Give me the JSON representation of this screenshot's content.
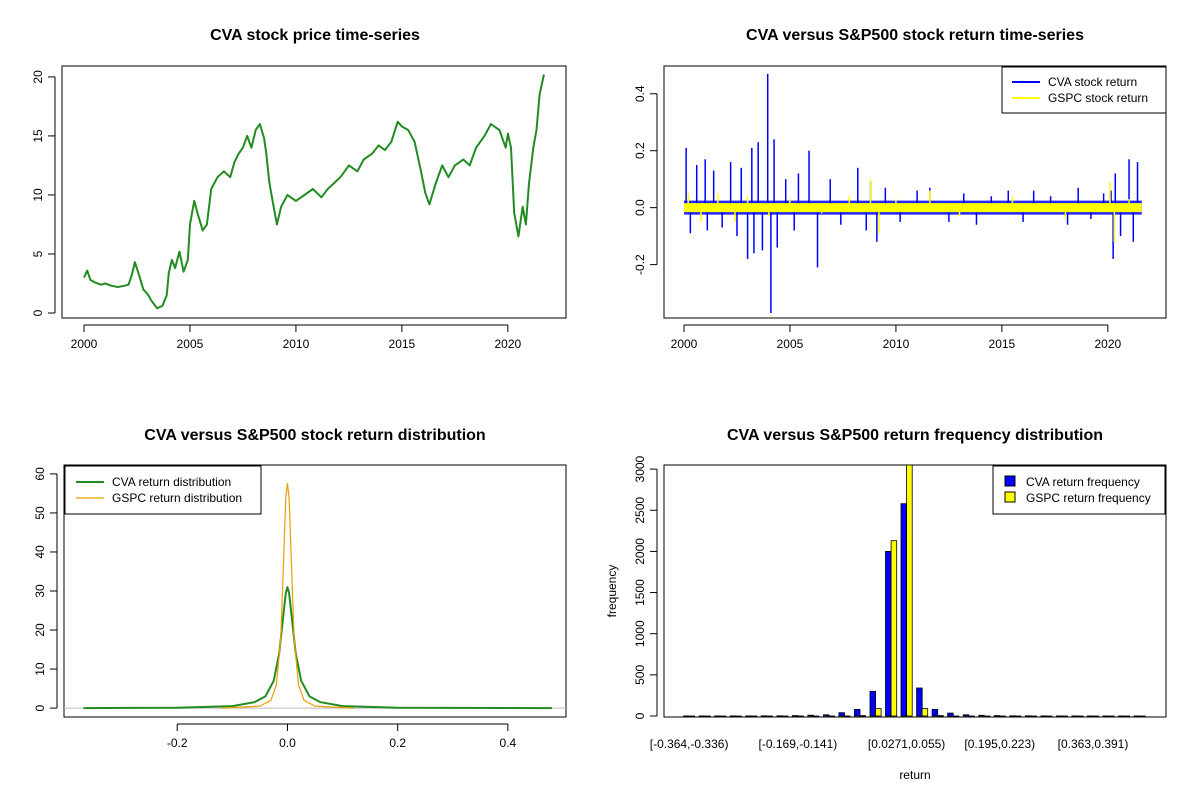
{
  "chart_data": [
    {
      "type": "line",
      "title": "CVA stock price time-series",
      "xlabel": "",
      "ylabel": "",
      "xlim": [
        2000,
        2021.8
      ],
      "ylim": [
        0,
        20.5
      ],
      "x_ticks": [
        "2000",
        "2005",
        "2010",
        "2015",
        "2020"
      ],
      "y_ticks": [
        "0",
        "5",
        "10",
        "15",
        "20"
      ],
      "colors": {
        "line": "#228B22"
      },
      "series": [
        {
          "x": [
            2000.0,
            2000.15,
            2000.3,
            2000.5,
            2000.8,
            2001.0,
            2001.3,
            2001.6,
            2001.9,
            2002.1,
            2002.25,
            2002.4,
            2002.6,
            2002.8,
            2003.0,
            2003.2,
            2003.45,
            2003.7,
            2003.9,
            2004.0,
            2004.15,
            2004.3,
            2004.5,
            2004.7,
            2004.9,
            2005.0,
            2005.2,
            2005.4,
            2005.6,
            2005.8,
            2006.0,
            2006.3,
            2006.6,
            2006.9,
            2007.1,
            2007.3,
            2007.5,
            2007.7,
            2007.9,
            2008.1,
            2008.3,
            2008.5,
            2008.6,
            2008.75,
            2008.9,
            2009.1,
            2009.3,
            2009.6,
            2010.0,
            2010.4,
            2010.8,
            2011.2,
            2011.5,
            2011.8,
            2012.1,
            2012.5,
            2012.9,
            2013.2,
            2013.6,
            2013.9,
            2014.2,
            2014.5,
            2014.8,
            2015.0,
            2015.3,
            2015.6,
            2015.9,
            2016.1,
            2016.3,
            2016.6,
            2016.9,
            2017.2,
            2017.5,
            2017.9,
            2018.2,
            2018.5,
            2018.9,
            2019.2,
            2019.6,
            2019.9,
            2020.0,
            2020.15,
            2020.3,
            2020.5,
            2020.7,
            2020.85,
            2021.0,
            2021.1,
            2021.2,
            2021.35,
            2021.5,
            2021.7
          ],
          "values": [
            3.0,
            3.6,
            2.8,
            2.6,
            2.4,
            2.5,
            2.3,
            2.2,
            2.3,
            2.4,
            3.2,
            4.3,
            3.2,
            2.0,
            1.6,
            1.0,
            0.4,
            0.6,
            1.5,
            3.4,
            4.5,
            3.8,
            5.2,
            3.5,
            4.5,
            7.5,
            9.5,
            8.2,
            7.0,
            7.5,
            10.5,
            11.5,
            12.0,
            11.5,
            12.8,
            13.5,
            14.0,
            15.0,
            14.0,
            15.5,
            16.0,
            14.8,
            13.5,
            11.0,
            9.5,
            7.5,
            9.0,
            10.0,
            9.5,
            10.0,
            10.5,
            9.8,
            10.5,
            11.0,
            11.5,
            12.5,
            12.0,
            13.0,
            13.5,
            14.2,
            13.8,
            14.5,
            16.2,
            15.8,
            15.5,
            14.5,
            12.0,
            10.2,
            9.2,
            11.0,
            12.5,
            11.5,
            12.5,
            13.0,
            12.5,
            14.0,
            15.0,
            16.0,
            15.5,
            14.0,
            15.2,
            14.0,
            8.5,
            6.5,
            9.0,
            7.5,
            11.0,
            12.5,
            14.0,
            15.5,
            18.5,
            20.2
          ]
        }
      ]
    },
    {
      "type": "line",
      "title": "CVA versus S&P500 stock return time-series",
      "xlabel": "",
      "ylabel": "",
      "xlim": [
        2000,
        2021.8
      ],
      "ylim": [
        -0.37,
        0.48
      ],
      "x_ticks": [
        "2000",
        "2005",
        "2010",
        "2015",
        "2020"
      ],
      "y_ticks": [
        "-0.2",
        "0.0",
        "0.2",
        "0.4"
      ],
      "legend_position": "top-right",
      "series": [
        {
          "name": "CVA stock return",
          "color": "#0000FF",
          "x": [
            2000.1,
            2000.3,
            2000.6,
            2001.0,
            2001.1,
            2001.4,
            2001.8,
            2002.2,
            2002.5,
            2002.7,
            2003.0,
            2003.2,
            2003.3,
            2003.5,
            2003.7,
            2003.95,
            2004.1,
            2004.25,
            2004.4,
            2004.8,
            2005.2,
            2005.4,
            2005.9,
            2006.3,
            2006.9,
            2007.4,
            2008.2,
            2008.6,
            2008.8,
            2009.1,
            2009.5,
            2010.2,
            2011.0,
            2011.6,
            2012.5,
            2013.2,
            2013.8,
            2014.5,
            2015.3,
            2016.0,
            2016.5,
            2017.3,
            2018.1,
            2018.6,
            2019.2,
            2019.8,
            2020.15,
            2020.25,
            2020.35,
            2020.6,
            2021.0,
            2021.2,
            2021.4
          ],
          "values": [
            0.21,
            -0.09,
            0.15,
            0.17,
            -0.08,
            0.13,
            -0.07,
            0.16,
            -0.1,
            0.14,
            -0.18,
            0.21,
            -0.16,
            0.23,
            -0.15,
            0.47,
            -0.37,
            0.24,
            -0.14,
            0.1,
            -0.08,
            0.12,
            0.2,
            -0.21,
            0.1,
            -0.06,
            0.14,
            -0.08,
            0.09,
            -0.12,
            0.07,
            -0.05,
            0.06,
            0.07,
            -0.05,
            0.05,
            -0.06,
            0.04,
            0.06,
            -0.05,
            0.06,
            0.04,
            -0.06,
            0.07,
            -0.04,
            0.05,
            0.06,
            -0.18,
            0.12,
            -0.1,
            0.17,
            -0.12,
            0.16
          ]
        },
        {
          "name": "GSPC stock return",
          "color": "#FFFF00",
          "x": [
            2000.2,
            2000.8,
            2001.6,
            2002.4,
            2003.0,
            2004.0,
            2005.0,
            2006.5,
            2007.8,
            2008.8,
            2009.2,
            2010.0,
            2011.6,
            2013.0,
            2015.5,
            2018.0,
            2020.1,
            2020.3,
            2021.0
          ],
          "values": [
            0.05,
            -0.05,
            0.05,
            -0.05,
            0.04,
            -0.03,
            0.03,
            -0.02,
            0.04,
            0.1,
            -0.09,
            0.03,
            0.06,
            -0.03,
            0.04,
            -0.04,
            0.09,
            -0.12,
            0.03
          ]
        }
      ]
    },
    {
      "type": "line",
      "title": "CVA versus S&P500 stock return distribution",
      "xlabel": "",
      "ylabel": "",
      "xlim": [
        -0.4,
        0.5
      ],
      "ylim": [
        -1,
        61
      ],
      "x_ticks": [
        "-0.2",
        "0.0",
        "0.2",
        "0.4"
      ],
      "y_ticks": [
        "0",
        "10",
        "20",
        "30",
        "40",
        "50",
        "60"
      ],
      "legend_position": "top-left",
      "series": [
        {
          "name": "CVA return distribution",
          "color": "#228B22",
          "x": [
            -0.37,
            -0.2,
            -0.1,
            -0.06,
            -0.04,
            -0.025,
            -0.015,
            -0.008,
            -0.003,
            0.0,
            0.003,
            0.008,
            0.015,
            0.025,
            0.04,
            0.06,
            0.1,
            0.2,
            0.48
          ],
          "values": [
            0.0,
            0.1,
            0.5,
            1.5,
            3.0,
            7.0,
            14.0,
            23.0,
            29.5,
            31.0,
            29.5,
            23.0,
            14.0,
            7.0,
            3.0,
            1.5,
            0.5,
            0.1,
            0.0
          ]
        },
        {
          "name": "GSPC return distribution",
          "color": "#E69F00",
          "x": [
            -0.12,
            -0.05,
            -0.03,
            -0.02,
            -0.012,
            -0.007,
            -0.003,
            0.0,
            0.003,
            0.007,
            0.012,
            0.02,
            0.03,
            0.05,
            0.12
          ],
          "values": [
            0.0,
            0.5,
            2.0,
            6.0,
            18.0,
            38.0,
            54.0,
            57.5,
            54.0,
            38.0,
            18.0,
            6.0,
            2.0,
            0.5,
            0.0
          ]
        }
      ]
    },
    {
      "type": "bar",
      "title": "CVA versus S&P500 return frequency distribution",
      "xlabel": "return",
      "ylabel": "frequency",
      "ylim": [
        0,
        3050
      ],
      "y_ticks": [
        "0",
        "500",
        "1000",
        "1500",
        "2000",
        "2500",
        "3000"
      ],
      "x_tick_labels": [
        "[-0.364,-0.336)",
        "[-0.169,-0.141)",
        "[0.0271,0.055)",
        "[0.195,0.223)",
        "[0.363,0.391)"
      ],
      "x_tick_label_bins": [
        0,
        7,
        14,
        20,
        26
      ],
      "legend_position": "top-right",
      "series": [
        {
          "name": "CVA return frequency",
          "color": "#0000FF",
          "values": [
            1,
            1,
            1,
            1,
            1,
            2,
            3,
            5,
            10,
            15,
            40,
            80,
            300,
            2000,
            2580,
            340,
            80,
            35,
            15,
            8,
            5,
            3,
            2,
            1,
            1,
            1,
            1,
            1,
            1,
            1
          ]
        },
        {
          "name": "GSPC return frequency",
          "color": "#FFFF00",
          "values": [
            0,
            0,
            0,
            0,
            0,
            0,
            0,
            0,
            0,
            0,
            0,
            5,
            90,
            2130,
            3100,
            90,
            5,
            0,
            0,
            0,
            0,
            0,
            0,
            0,
            0,
            0,
            0,
            0,
            0,
            0
          ]
        }
      ]
    }
  ]
}
